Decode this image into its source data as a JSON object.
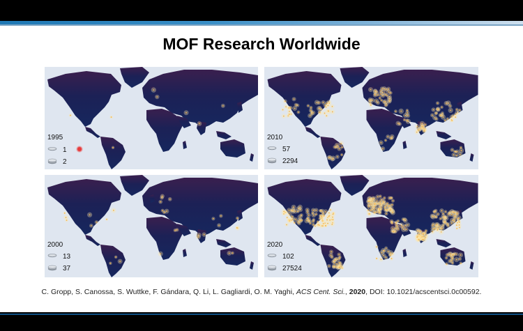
{
  "slide": {
    "title": "MOF Research Worldwide",
    "citation": {
      "authors": "C. Gropp, S. Canossa, S. Wuttke, F. Gándara, Q. Li, L. Gagliardi, O. M. Yaghi,",
      "journal": "ACS Cent. Sci.",
      "year": "2020",
      "doi": ", DOI: 10.1021/acscentsci.0c00592."
    }
  },
  "maps": [
    {
      "year": "1995",
      "count1": "1",
      "count2": "2",
      "density": 0.01
    },
    {
      "year": "2010",
      "count1": "57",
      "count2": "2294",
      "density": 0.45
    },
    {
      "year": "2000",
      "count1": "13",
      "count2": "37",
      "density": 0.08
    },
    {
      "year": "2020",
      "count1": "102",
      "count2": "27524",
      "density": 1.0
    }
  ],
  "colors": {
    "ocean": "#dfe6f0",
    "land_dark": "#1c2156",
    "land_north": "#3a1f4e",
    "glow": "#ffe9a8",
    "dot": "#f6b44a",
    "accent_stripe": "#1f78b4",
    "marker": "#e83b3b"
  },
  "icons": {
    "legend_single": "paper-stack-icon",
    "legend_double": "paper-stack-double-icon",
    "cursor_marker": "red-dot-marker-icon"
  }
}
